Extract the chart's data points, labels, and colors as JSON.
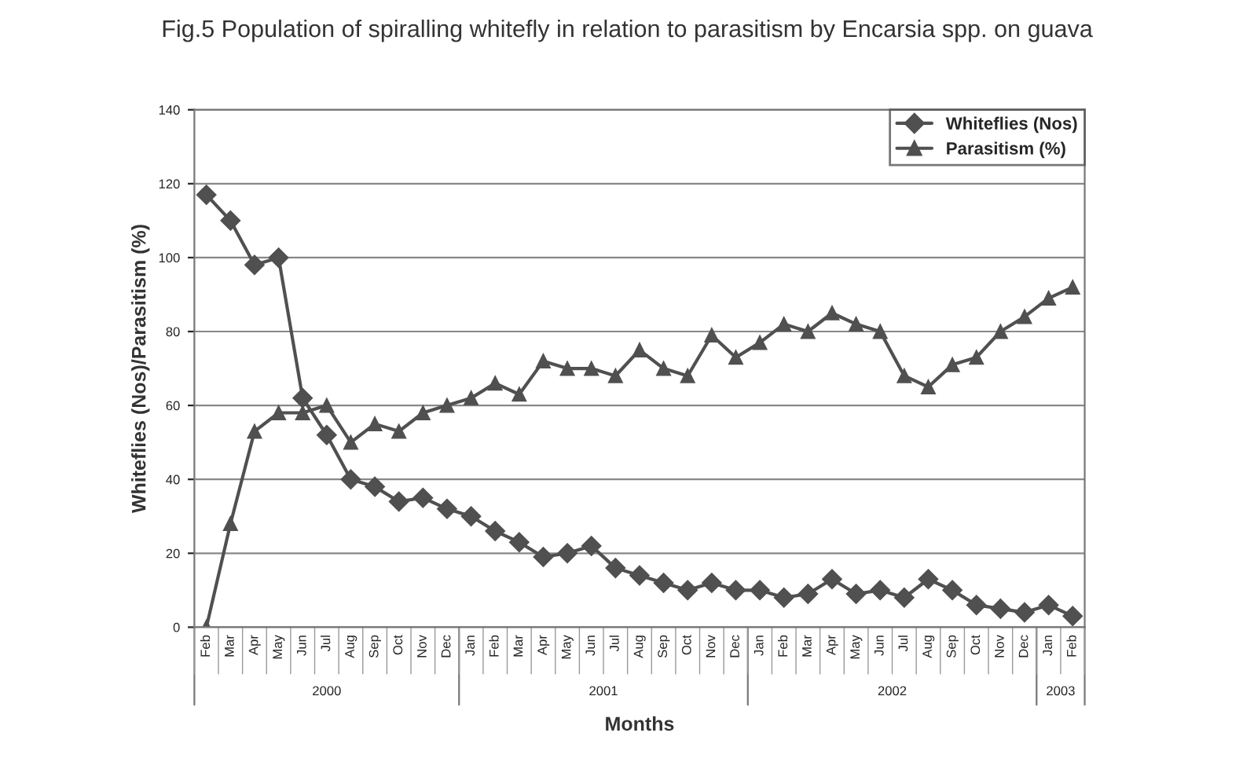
{
  "chart_data": {
    "type": "line",
    "title": "Fig.5 Population of spiralling whitefly in relation to parasitism by Encarsia spp. on guava",
    "xlabel": "Months",
    "ylabel": "Whiteflies (Nos)/Parasitism (%)",
    "categories": [
      "Feb",
      "Mar",
      "Apr",
      "May",
      "Jun",
      "Jul",
      "Aug",
      "Sep",
      "Oct",
      "Nov",
      "Dec",
      "Jan",
      "Feb",
      "Mar",
      "Apr",
      "May",
      "Jun",
      "Jul",
      "Aug",
      "Sep",
      "Oct",
      "Nov",
      "Dec",
      "Jan",
      "Feb",
      "Mar",
      "Apr",
      "May",
      "Jun",
      "Jul",
      "Aug",
      "Sep",
      "Oct",
      "Nov",
      "Dec",
      "Jan",
      "Feb"
    ],
    "series": [
      {
        "name": "Whiteflies (Nos)",
        "color": "#505050",
        "marker": "diamond",
        "values": [
          117,
          110,
          98,
          100,
          62,
          52,
          40,
          38,
          34,
          35,
          32,
          30,
          26,
          23,
          19,
          20,
          22,
          16,
          14,
          12,
          10,
          12,
          10,
          10,
          8,
          9,
          13,
          9,
          10,
          8,
          13,
          10,
          6,
          5,
          4,
          6,
          3
        ]
      },
      {
        "name": "Parasitism (%)",
        "color": "#505050",
        "marker": "triangle",
        "values": [
          0,
          28,
          53,
          58,
          58,
          60,
          50,
          55,
          53,
          58,
          60,
          62,
          66,
          63,
          72,
          70,
          70,
          68,
          75,
          70,
          68,
          79,
          73,
          77,
          82,
          80,
          85,
          82,
          80,
          68,
          65,
          71,
          73,
          80,
          84,
          89,
          92
        ]
      }
    ],
    "annotations": [
      "2000",
      "2001",
      "2002",
      "2003"
    ],
    "ylim": [
      0,
      140
    ],
    "yticks": [
      0,
      20,
      40,
      60,
      80,
      100,
      120,
      140
    ],
    "grid": "y",
    "legend": "top right",
    "line_style": "solid"
  }
}
